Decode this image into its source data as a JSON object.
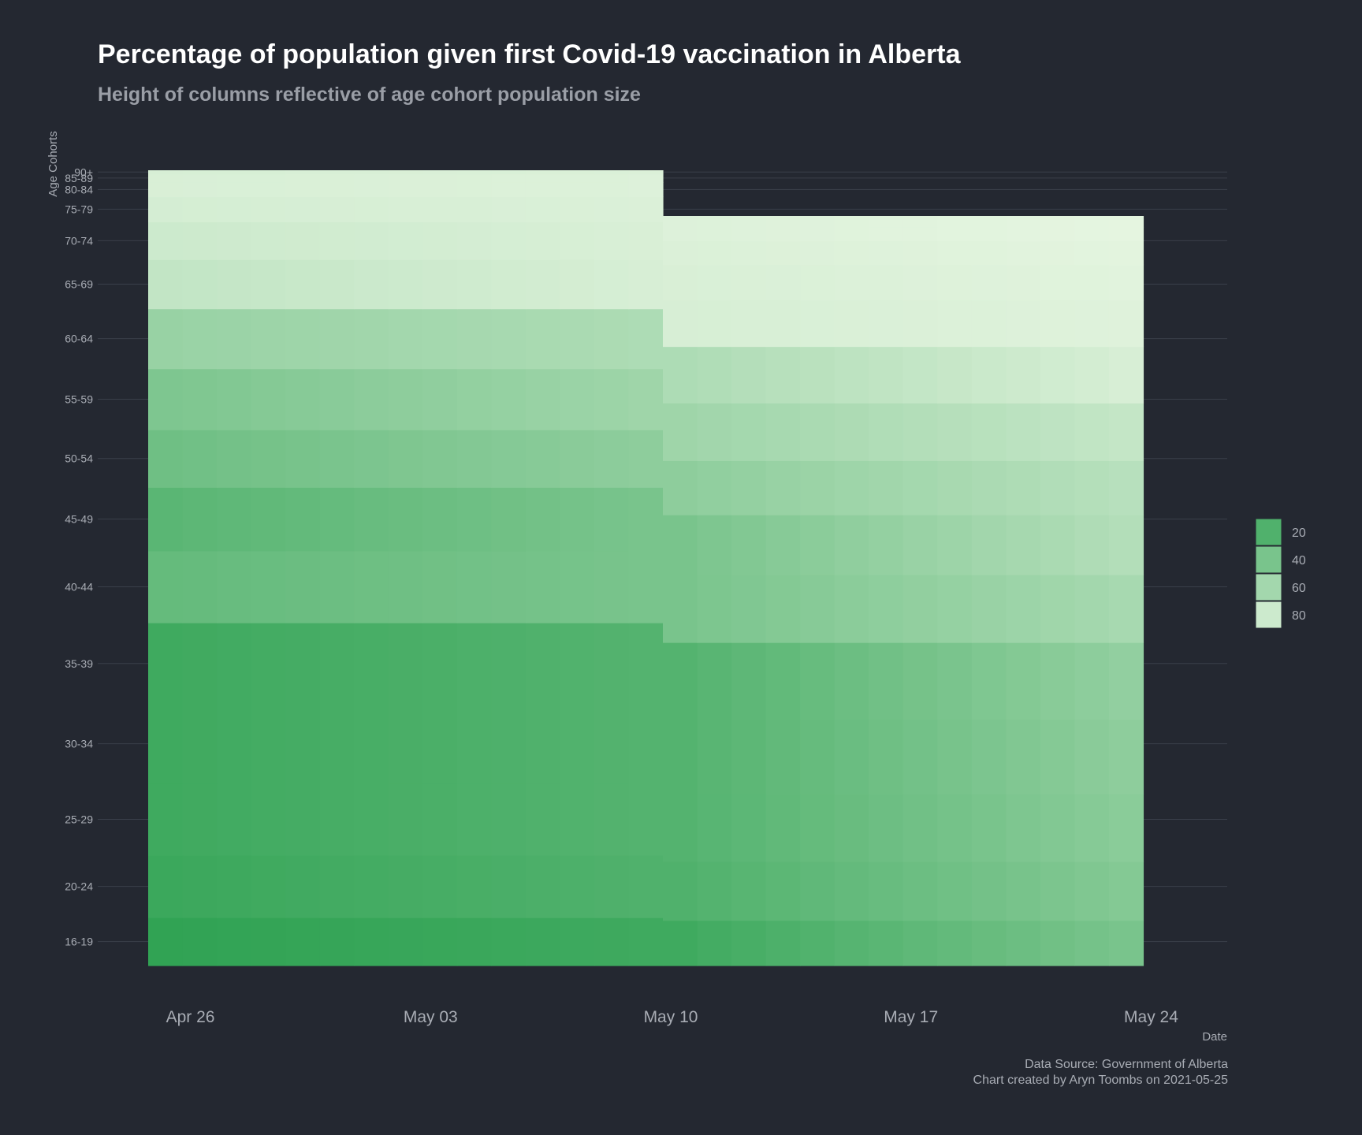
{
  "title": "Percentage of population given first Covid-19 vaccination in Alberta",
  "subtitle": "Height of columns reflective of age cohort population size",
  "caption": {
    "source": "Data Source: Government of Alberta",
    "credit": "Chart created by Aryn Toombs on 2021-05-25"
  },
  "colors": {
    "background": "#242831",
    "low": "#31a354",
    "high": "#e5f5e0",
    "gridline": "#3a3f4a"
  },
  "chart_data": {
    "type": "heatmap",
    "xlabel": "Date",
    "ylabel": "Age Cohorts",
    "x_ticks": [
      "Apr 26",
      "May 03",
      "May 10",
      "May 17",
      "May 24"
    ],
    "x_range": [
      "2021-04-25",
      "2021-05-25"
    ],
    "segments": [
      {
        "start": "2021-04-25",
        "end": "2021-05-10"
      },
      {
        "start": "2021-05-10",
        "end": "2021-05-24"
      }
    ],
    "legend": {
      "placement": "right",
      "breaks": [
        20,
        40,
        60,
        80
      ]
    },
    "cohorts": [
      "16-19",
      "20-24",
      "25-29",
      "30-34",
      "35-39",
      "40-44",
      "45-49",
      "50-54",
      "55-59",
      "60-64",
      "65-69",
      "70-74",
      "75-79",
      "80-84",
      "85-89",
      "90+"
    ],
    "series": [
      {
        "start": [
          5,
          12
        ],
        "end": [
          12,
          40
        ]
      },
      {
        "start": [
          10,
          20
        ],
        "end": [
          20,
          45
        ]
      },
      {
        "start": [
          12,
          22
        ],
        "end": [
          22,
          48
        ]
      },
      {
        "start": [
          12,
          22
        ],
        "end": [
          22,
          50
        ]
      },
      {
        "start": [
          12,
          22
        ],
        "end": [
          22,
          52
        ]
      },
      {
        "start": [
          30,
          40
        ],
        "end": [
          40,
          62
        ]
      },
      {
        "start": [
          25,
          40
        ],
        "end": [
          40,
          68
        ]
      },
      {
        "start": [
          35,
          50
        ],
        "end": [
          50,
          70
        ]
      },
      {
        "start": [
          42,
          58
        ],
        "end": [
          58,
          76
        ]
      },
      {
        "start": [
          55,
          65
        ],
        "end": [
          65,
          85
        ]
      },
      {
        "start": [
          75,
          85
        ],
        "end": [
          85,
          89
        ]
      },
      {
        "start": [
          80,
          86
        ],
        "end": [
          86,
          90
        ]
      },
      {
        "start": [
          84,
          87
        ],
        "end": [
          87,
          91
        ]
      },
      {
        "start": [
          86,
          88
        ],
        "end": [
          88,
          92
        ]
      },
      {
        "start": [
          86,
          88
        ],
        "end": [
          88,
          92
        ]
      },
      {
        "start": [
          85,
          87
        ],
        "end": [
          87,
          91
        ]
      }
    ]
  }
}
